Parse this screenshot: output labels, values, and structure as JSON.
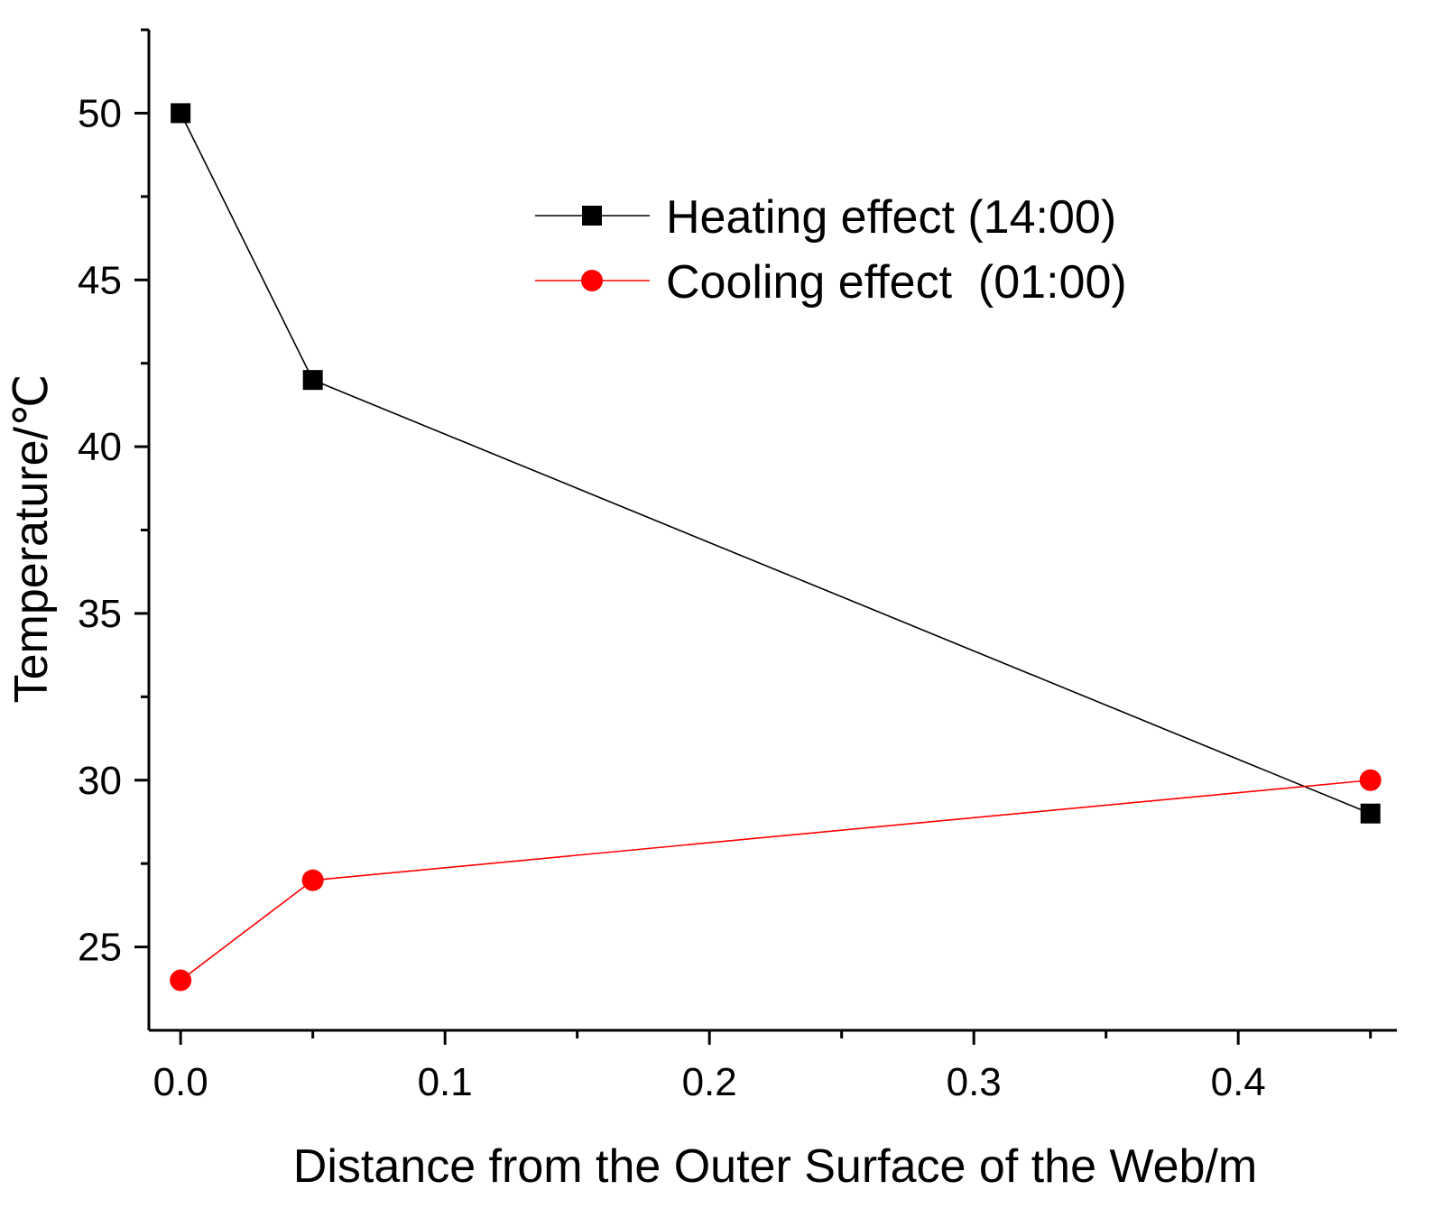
{
  "chart_data": {
    "type": "line",
    "title": "",
    "xlabel": "Distance from the Outer Surface of the Web/m",
    "ylabel": "Temperature/℃",
    "xlim": [
      -0.012,
      0.46
    ],
    "ylim": [
      22.5,
      52.5
    ],
    "x_ticks": [
      0.0,
      0.1,
      0.2,
      0.3,
      0.4
    ],
    "x_tick_labels": [
      "0.0",
      "0.1",
      "0.2",
      "0.3",
      "0.4"
    ],
    "x_minor_ticks": [
      0.05,
      0.15,
      0.25,
      0.35,
      0.45
    ],
    "y_ticks": [
      25,
      30,
      35,
      40,
      45,
      50
    ],
    "y_tick_labels": [
      "25",
      "30",
      "35",
      "40",
      "45",
      "50"
    ],
    "y_minor_ticks": [
      27.5,
      32.5,
      37.5,
      42.5,
      47.5,
      52.5
    ],
    "grid": false,
    "legend_position": "top-right",
    "series": [
      {
        "name": "Heating effect (14:00)",
        "marker": "square",
        "color": "#000000",
        "x": [
          0.0,
          0.05,
          0.45
        ],
        "y": [
          50,
          42,
          29
        ]
      },
      {
        "name": "Cooling effect  (01:00)",
        "marker": "circle",
        "color": "#ff0000",
        "x": [
          0.0,
          0.05,
          0.45
        ],
        "y": [
          24,
          27,
          30
        ]
      }
    ]
  }
}
